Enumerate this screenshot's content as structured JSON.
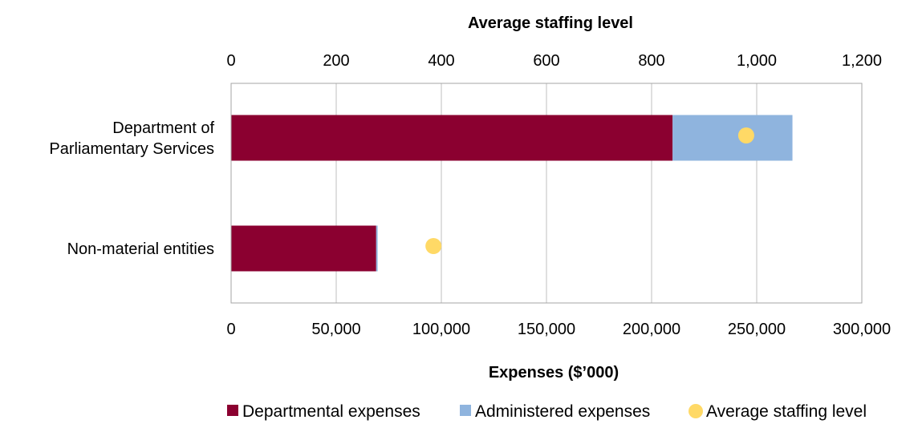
{
  "chart_data": {
    "type": "bar",
    "orientation": "horizontal",
    "stacked": true,
    "categories": [
      "Department of Parliamentary Services",
      "Non-material entities"
    ],
    "category_label_lines": [
      [
        "Department of",
        "Parliamentary Services"
      ],
      [
        "Non-material entities"
      ]
    ],
    "series": [
      {
        "name": "Departmental expenses",
        "values": [
          210000,
          69000
        ],
        "color": "#8B0030"
      },
      {
        "name": "Administered expenses",
        "values": [
          57000,
          700
        ],
        "color": "#8FB4DE"
      }
    ],
    "secondary_series": {
      "name": "Average staffing level",
      "values": [
        980,
        385
      ],
      "color": "#FFD966",
      "marker": "circle"
    },
    "xlabel": "Expenses ($’000)",
    "x2label": "Average staffing level",
    "xlim": [
      0,
      300000
    ],
    "x2lim": [
      0,
      1200
    ],
    "x_ticks": [
      "0",
      "50,000",
      "100,000",
      "150,000",
      "200,000",
      "250,000",
      "300,000"
    ],
    "x2_ticks": [
      "0",
      "200",
      "400",
      "600",
      "800",
      "1,000",
      "1,200"
    ],
    "grid": true,
    "legend_position": "bottom",
    "colors": {
      "gridline": "#BFBFBF",
      "axis": "#A6A6A6"
    }
  }
}
